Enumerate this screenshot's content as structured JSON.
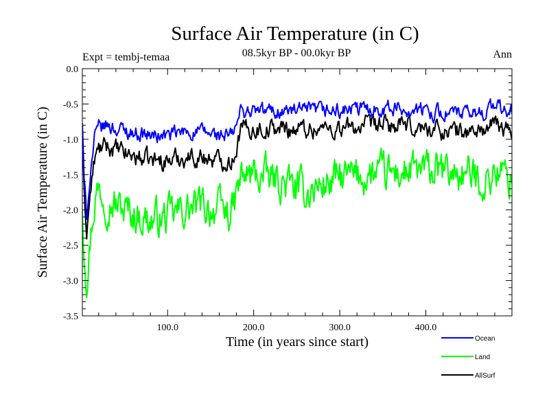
{
  "chart_data": {
    "type": "line",
    "title": "Surface Air Temperature (in C)",
    "subtitle": "08.5kyr BP - 00.0kyr BP",
    "left_annotation": "Expt = tembj-temaa",
    "right_annotation": "Ann",
    "xlabel": "Time (in years since start)",
    "ylabel": "Surface Air Temperature (in C)",
    "xlim": [
      1,
      500
    ],
    "ylim": [
      -3.5,
      0.0
    ],
    "x_ticks": [
      100,
      200,
      300,
      400
    ],
    "x_tick_labels": [
      "100.0",
      "200.0",
      "300.0",
      "400.0"
    ],
    "y_ticks": [
      0.0,
      -0.5,
      -1.0,
      -1.5,
      -2.0,
      -2.5,
      -3.0,
      -3.5
    ],
    "y_tick_labels": [
      "0.0",
      "-0.5",
      "-1.0",
      "-1.5",
      "-2.0",
      "-2.5",
      "-3.0",
      "-3.5"
    ],
    "legend_position": "bottom-right, below plot",
    "series": [
      {
        "name": "Ocean",
        "color": "#0000ff",
        "noise_amp": 0.09,
        "x": [
          1,
          3,
          6,
          10,
          15,
          20,
          30,
          40,
          60,
          80,
          100,
          120,
          140,
          160,
          175,
          180,
          185,
          200,
          250,
          300,
          350,
          400,
          450,
          470,
          480,
          490,
          500
        ],
        "values": [
          -0.75,
          -1.6,
          -2.1,
          -1.5,
          -1.0,
          -0.85,
          -0.8,
          -0.85,
          -0.9,
          -0.95,
          -0.95,
          -0.9,
          -0.9,
          -0.95,
          -0.95,
          -0.8,
          -0.6,
          -0.6,
          -0.6,
          -0.6,
          -0.55,
          -0.6,
          -0.65,
          -0.6,
          -0.5,
          -0.6,
          -0.62
        ]
      },
      {
        "name": "Land",
        "color": "#00ff00",
        "noise_amp": 0.22,
        "x": [
          1,
          3,
          6,
          8,
          12,
          16,
          20,
          30,
          50,
          80,
          100,
          120,
          140,
          160,
          175,
          180,
          185,
          200,
          230,
          260,
          300,
          350,
          400,
          450,
          470,
          480,
          490,
          500
        ],
        "values": [
          -1.9,
          -2.5,
          -2.9,
          -2.7,
          -2.2,
          -1.8,
          -1.7,
          -1.85,
          -2.0,
          -2.15,
          -2.1,
          -2.0,
          -1.95,
          -2.0,
          -2.05,
          -1.8,
          -1.55,
          -1.5,
          -1.6,
          -1.75,
          -1.55,
          -1.5,
          -1.45,
          -1.5,
          -1.6,
          -1.45,
          -1.5,
          -1.55
        ]
      },
      {
        "name": "AllSurf",
        "color": "#000000",
        "noise_amp": 0.11,
        "x": [
          1,
          3,
          6,
          10,
          15,
          20,
          30,
          50,
          80,
          100,
          120,
          140,
          160,
          175,
          180,
          185,
          200,
          250,
          300,
          350,
          400,
          450,
          470,
          480,
          490,
          500
        ],
        "values": [
          -1.05,
          -1.8,
          -2.3,
          -1.8,
          -1.3,
          -1.15,
          -1.1,
          -1.2,
          -1.3,
          -1.3,
          -1.25,
          -1.25,
          -1.3,
          -1.3,
          -1.1,
          -0.85,
          -0.85,
          -0.85,
          -0.85,
          -0.8,
          -0.85,
          -0.9,
          -0.85,
          -0.8,
          -0.85,
          -0.9
        ]
      }
    ]
  }
}
